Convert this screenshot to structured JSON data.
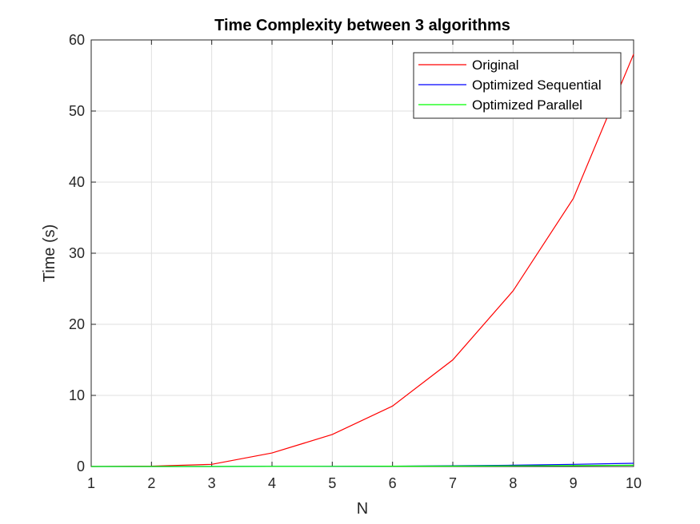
{
  "chart_data": {
    "type": "line",
    "title": "Time Complexity between 3 algorithms",
    "xlabel": "N",
    "ylabel": "Time (s)",
    "xlim": [
      1,
      10
    ],
    "ylim": [
      0,
      60
    ],
    "xticks": [
      "1",
      "2",
      "3",
      "4",
      "5",
      "6",
      "7",
      "8",
      "9",
      "10"
    ],
    "yticks": [
      "0",
      "10",
      "20",
      "30",
      "40",
      "50",
      "60"
    ],
    "grid": true,
    "legend_position": "top-right",
    "x": [
      1,
      2,
      3,
      4,
      5,
      6,
      7,
      8,
      9,
      10
    ],
    "series": [
      {
        "name": "Original",
        "color": "#ff0000",
        "values": [
          0.0,
          0.05,
          0.3,
          1.9,
          4.5,
          8.5,
          15.0,
          24.7,
          37.7,
          58.0
        ]
      },
      {
        "name": "Optimized Sequential",
        "color": "#0000ff",
        "values": [
          0.0,
          0.0,
          0.0,
          0.01,
          0.02,
          0.05,
          0.1,
          0.18,
          0.3,
          0.45
        ]
      },
      {
        "name": "Optimized Parallel",
        "color": "#00ff00",
        "values": [
          0.0,
          0.0,
          0.0,
          0.01,
          0.02,
          0.04,
          0.06,
          0.09,
          0.13,
          0.18
        ]
      }
    ]
  }
}
